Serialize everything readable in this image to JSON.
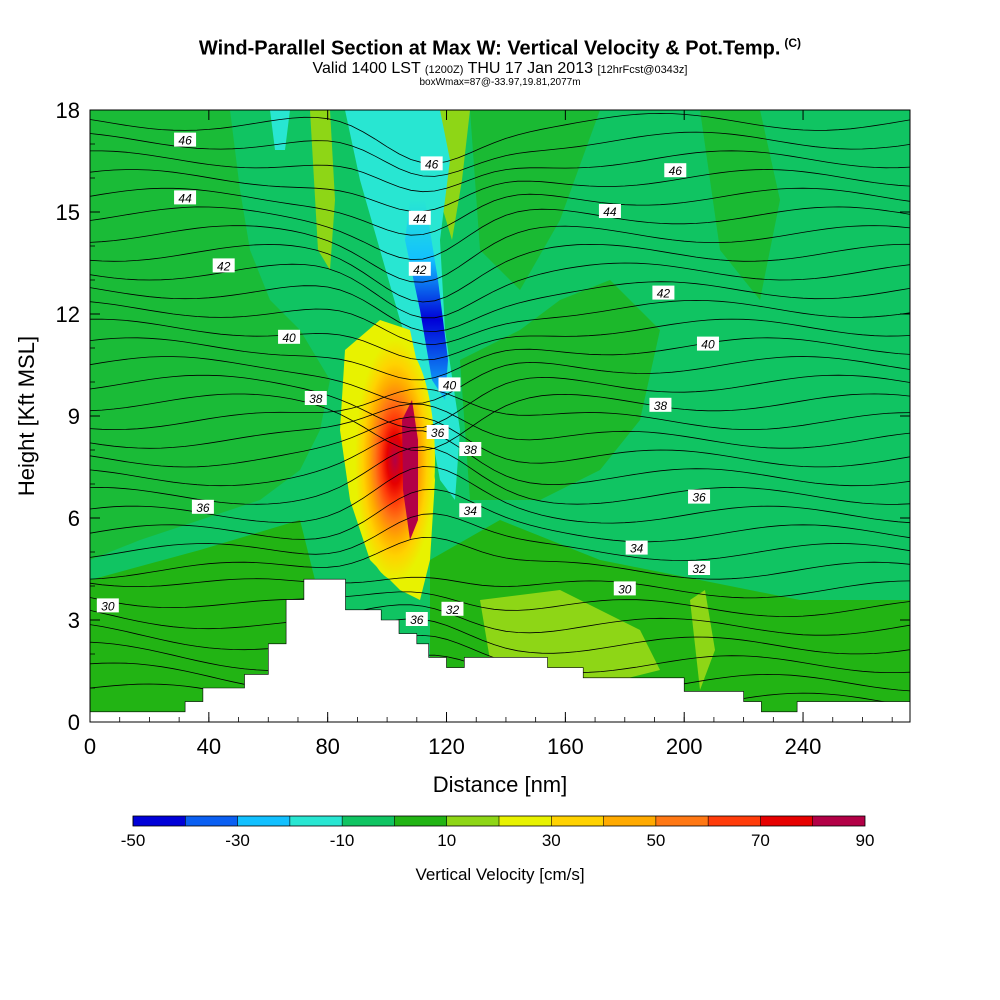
{
  "header": {
    "title": "Wind-Parallel Section at Max W: Vertical Velocity & Pot.Temp.",
    "copyright": "(C)",
    "valid_main": "Valid 1400 LST",
    "valid_utc": "(1200Z)",
    "valid_day": "THU 17 Jan 2013",
    "forecast": "[12hrFcst@0343z]",
    "box_info": "boxWmax=87@-33.97,19.81,2077m"
  },
  "chart_data": {
    "type": "heatmap",
    "xlabel": "Distance [nm]",
    "ylabel": "Height [Kft MSL]",
    "xlim": [
      0,
      276
    ],
    "ylim": [
      0,
      18
    ],
    "xticks": [
      0,
      40,
      80,
      120,
      160,
      200,
      240
    ],
    "yticks": [
      0,
      3,
      6,
      9,
      12,
      15,
      18
    ],
    "colorbar": {
      "label": "Vertical Velocity [cm/s]",
      "ticks": [
        -50,
        -30,
        -10,
        10,
        30,
        50,
        70,
        90
      ],
      "colors": [
        "#0000d8",
        "#0a5ff2",
        "#12c0ff",
        "#28e6d2",
        "#10c462",
        "#22b414",
        "#8ed616",
        "#e8f200",
        "#ffd200",
        "#ffaa00",
        "#ff7814",
        "#ff3c0a",
        "#e60000",
        "#b20046"
      ]
    },
    "terrain_profile": [
      [
        0,
        0.3
      ],
      [
        32,
        0.3
      ],
      [
        32,
        0.6
      ],
      [
        38,
        0.6
      ],
      [
        38,
        1.0
      ],
      [
        52,
        1.0
      ],
      [
        52,
        1.4
      ],
      [
        60,
        1.4
      ],
      [
        60,
        2.3
      ],
      [
        66,
        2.3
      ],
      [
        66,
        3.6
      ],
      [
        72,
        3.6
      ],
      [
        72,
        4.2
      ],
      [
        86,
        4.2
      ],
      [
        86,
        3.3
      ],
      [
        98,
        3.3
      ],
      [
        98,
        3.0
      ],
      [
        104,
        3.0
      ],
      [
        104,
        2.6
      ],
      [
        110,
        2.6
      ],
      [
        110,
        2.3
      ],
      [
        114,
        2.3
      ],
      [
        114,
        1.9
      ],
      [
        120,
        1.9
      ],
      [
        120,
        1.6
      ],
      [
        126,
        1.6
      ],
      [
        126,
        1.9
      ],
      [
        154,
        1.9
      ],
      [
        154,
        1.6
      ],
      [
        166,
        1.6
      ],
      [
        166,
        1.3
      ],
      [
        200,
        1.3
      ],
      [
        200,
        0.9
      ],
      [
        220,
        0.9
      ],
      [
        220,
        0.6
      ],
      [
        226,
        0.6
      ],
      [
        226,
        0.3
      ],
      [
        238,
        0.3
      ],
      [
        238,
        0.6
      ],
      [
        276,
        0.6
      ]
    ],
    "isentrope_labels": [
      {
        "text": "46",
        "x": 32,
        "y": 17.1
      },
      {
        "text": "44",
        "x": 32,
        "y": 15.4
      },
      {
        "text": "42",
        "x": 45,
        "y": 13.4
      },
      {
        "text": "40",
        "x": 67,
        "y": 11.3
      },
      {
        "text": "38",
        "x": 76,
        "y": 9.5
      },
      {
        "text": "36",
        "x": 38,
        "y": 6.3
      },
      {
        "text": "30",
        "x": 6,
        "y": 3.4
      },
      {
        "text": "46",
        "x": 115,
        "y": 16.4
      },
      {
        "text": "44",
        "x": 111,
        "y": 14.8
      },
      {
        "text": "42",
        "x": 111,
        "y": 13.3
      },
      {
        "text": "40",
        "x": 121,
        "y": 9.9
      },
      {
        "text": "36",
        "x": 117,
        "y": 8.5
      },
      {
        "text": "38",
        "x": 128,
        "y": 8.0
      },
      {
        "text": "34",
        "x": 128,
        "y": 6.2
      },
      {
        "text": "36",
        "x": 110,
        "y": 3.0
      },
      {
        "text": "32",
        "x": 122,
        "y": 3.3
      },
      {
        "text": "46",
        "x": 197,
        "y": 16.2
      },
      {
        "text": "44",
        "x": 175,
        "y": 15.0
      },
      {
        "text": "42",
        "x": 193,
        "y": 12.6
      },
      {
        "text": "40",
        "x": 208,
        "y": 11.1
      },
      {
        "text": "38",
        "x": 192,
        "y": 9.3
      },
      {
        "text": "36",
        "x": 205,
        "y": 6.6
      },
      {
        "text": "34",
        "x": 184,
        "y": 5.1
      },
      {
        "text": "32",
        "x": 205,
        "y": 4.5
      },
      {
        "text": "30",
        "x": 180,
        "y": 3.9
      }
    ]
  }
}
